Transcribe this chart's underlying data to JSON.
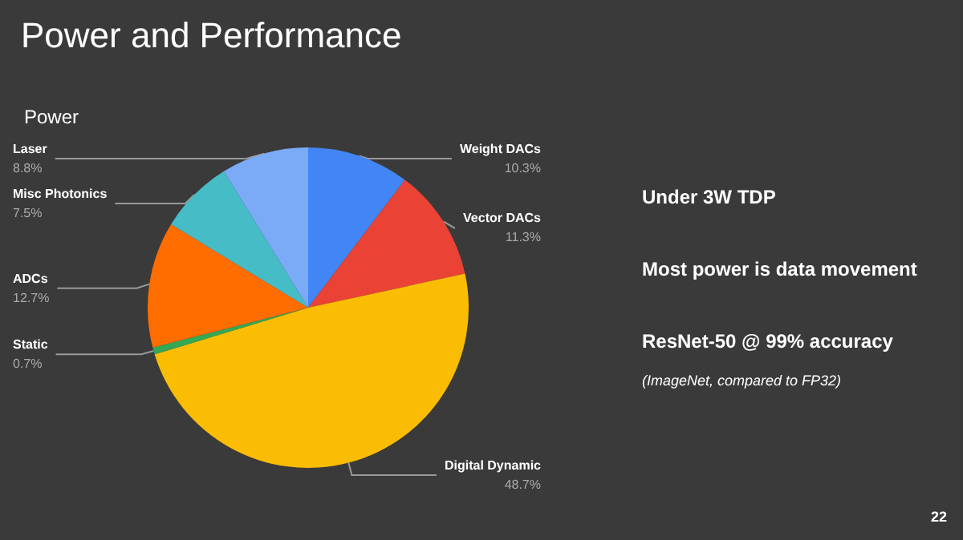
{
  "chart_data": {
    "type": "pie",
    "title": "Power and Performance",
    "subtitle": "Power",
    "categories": [
      "Weight DACs",
      "Vector DACs",
      "Digital Dynamic",
      "Static",
      "ADCs",
      "Misc Photonics",
      "Laser"
    ],
    "values": [
      10.3,
      11.3,
      48.7,
      0.7,
      12.7,
      7.5,
      8.8
    ],
    "value_labels": [
      "10.3%",
      "11.3%",
      "48.7%",
      "0.7%",
      "12.7%",
      "7.5%",
      "8.8%"
    ],
    "colors": [
      "#4285f4",
      "#ea4335",
      "#fbbc04",
      "#34a853",
      "#ff6d01",
      "#46bdc6",
      "#7baaf7"
    ],
    "annotations": [
      "Under 3W TDP",
      "Most power is data movement",
      "ResNet-50 @ 99% accuracy",
      "(ImageNet, compared to FP32)",
      "22"
    ],
    "legend": false
  }
}
